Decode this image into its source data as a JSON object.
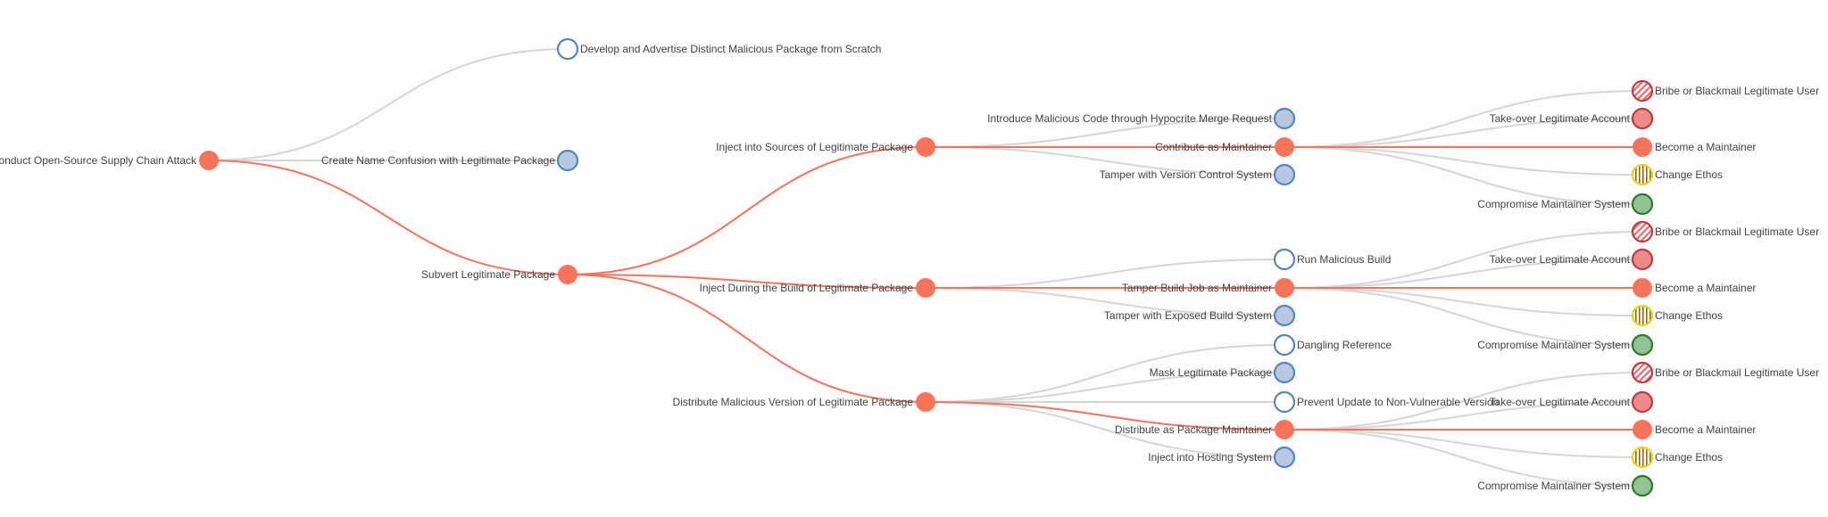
{
  "colors": {
    "highlight_link": "#f4735a",
    "default_link": "#d6d6d6",
    "red": {
      "fill": "#f7735a",
      "stroke": "#f7735a"
    },
    "blue": {
      "fill": "#b7c9e2",
      "stroke": "#5585bd"
    },
    "white": {
      "fill": "#ffffff",
      "stroke": "#5585bd"
    },
    "hatched-red": {
      "fill": "#ffffff",
      "stroke": "#c0393b",
      "pattern": "#e86a6a"
    },
    "pink": {
      "fill": "#ee8a8a",
      "stroke": "#c0393b"
    },
    "striped-yellow": {
      "fill": "#ffffff",
      "stroke": "#f2cc1a",
      "pattern": "#8a6a1a"
    },
    "green": {
      "fill": "#93c293",
      "stroke": "#2a7a2a"
    }
  },
  "tree": {
    "label": "Conduct Open-Source Supply Chain Attack",
    "status": "red",
    "children": [
      {
        "label": "Develop and Advertise Distinct Malicious Package from Scratch",
        "status": "white"
      },
      {
        "label": "Create Name Confusion with Legitimate Package",
        "status": "blue"
      },
      {
        "label": "Subvert Legitimate Package",
        "status": "red",
        "children": [
          {
            "label": "Inject into Sources of Legitimate Package",
            "status": "red",
            "children": [
              {
                "label": "Introduce Malicious Code through Hypocrite Merge Request",
                "status": "blue"
              },
              {
                "label": "Contribute as Maintainer",
                "status": "red",
                "children": [
                  {
                    "label": "Bribe or Blackmail Legitimate User",
                    "status": "hatched-red"
                  },
                  {
                    "label": "Take-over Legitimate Account",
                    "status": "pink"
                  },
                  {
                    "label": "Become a Maintainer",
                    "status": "red"
                  },
                  {
                    "label": "Change Ethos",
                    "status": "striped-yellow"
                  },
                  {
                    "label": "Compromise Maintainer System",
                    "status": "green"
                  }
                ]
              },
              {
                "label": "Tamper with Version Control System",
                "status": "blue"
              }
            ]
          },
          {
            "label": "Inject During the Build of Legitimate Package",
            "status": "red",
            "children": [
              {
                "label": "Run Malicious Build",
                "status": "white"
              },
              {
                "label": "Tamper Build Job as Maintainer",
                "status": "red",
                "children": [
                  {
                    "label": "Bribe or Blackmail Legitimate User",
                    "status": "hatched-red"
                  },
                  {
                    "label": "Take-over Legitimate Account",
                    "status": "pink"
                  },
                  {
                    "label": "Become a Maintainer",
                    "status": "red"
                  },
                  {
                    "label": "Change Ethos",
                    "status": "striped-yellow"
                  },
                  {
                    "label": "Compromise Maintainer System",
                    "status": "green"
                  }
                ]
              },
              {
                "label": "Tamper with Exposed Build System",
                "status": "blue"
              }
            ]
          },
          {
            "label": "Distribute Malicious Version of Legitimate Package",
            "status": "red",
            "children": [
              {
                "label": "Dangling Reference",
                "status": "white"
              },
              {
                "label": "Mask Legitimate Package",
                "status": "blue"
              },
              {
                "label": "Prevent Update to Non-Vulnerable Version",
                "status": "white"
              },
              {
                "label": "Distribute as Package Maintainer",
                "status": "red",
                "children": [
                  {
                    "label": "Bribe or Blackmail Legitimate User",
                    "status": "hatched-red"
                  },
                  {
                    "label": "Take-over Legitimate Account",
                    "status": "pink"
                  },
                  {
                    "label": "Become a Maintainer",
                    "status": "red"
                  },
                  {
                    "label": "Change Ethos",
                    "status": "striped-yellow"
                  },
                  {
                    "label": "Compromise Maintainer System",
                    "status": "green"
                  }
                ]
              },
              {
                "label": "Inject into Hosting System",
                "status": "blue"
              }
            ]
          }
        ]
      }
    ]
  }
}
